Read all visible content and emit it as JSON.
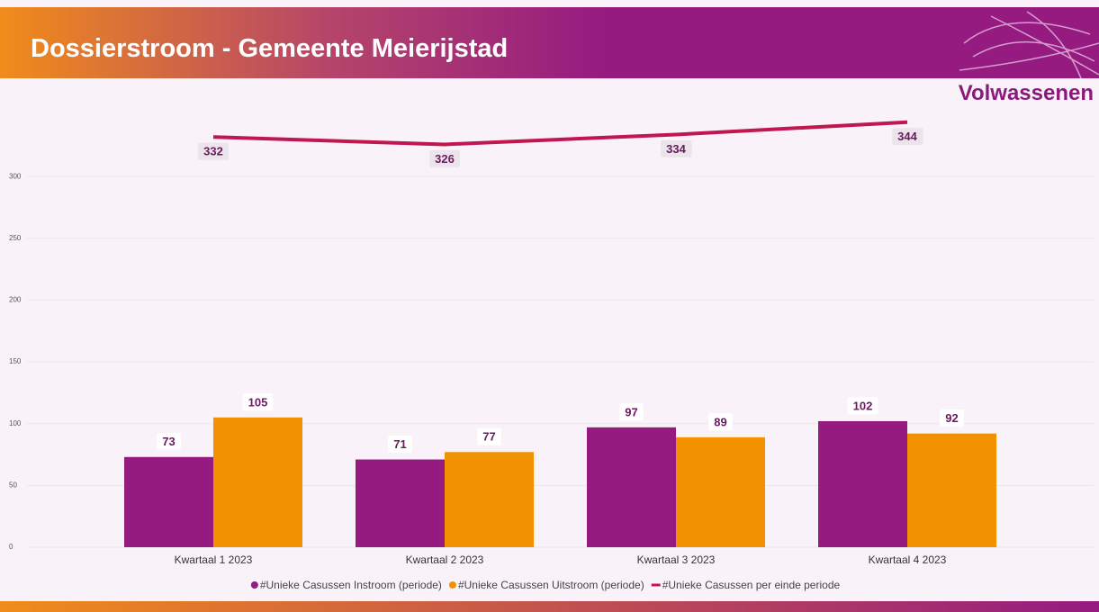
{
  "header": {
    "title": "Dossierstroom - Gemeente Meierijstad",
    "subtitle": "Volwassenen"
  },
  "chart_data": {
    "type": "bar",
    "categories": [
      "Kwartaal 1 2023",
      "Kwartaal 2 2023",
      "Kwartaal 3 2023",
      "Kwartaal 4 2023"
    ],
    "series": [
      {
        "name": "#Unieke Casussen Instroom (periode)",
        "color": "#951b81",
        "values": [
          73,
          71,
          97,
          102
        ]
      },
      {
        "name": "#Unieke Casussen Uitstroom (periode)",
        "color": "#f39200",
        "values": [
          105,
          77,
          89,
          92
        ]
      },
      {
        "name": "#Unieke Casussen per einde periode",
        "color": "#c0174f",
        "type": "line",
        "values": [
          332,
          326,
          334,
          344
        ]
      }
    ],
    "ylim": [
      0,
      350
    ],
    "yticks": [
      0,
      50,
      100,
      150,
      200,
      250,
      300
    ],
    "grid": true,
    "legend": "bottom"
  }
}
